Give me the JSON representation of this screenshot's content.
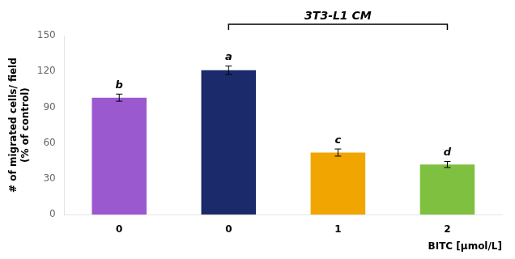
{
  "chart_data": {
    "type": "bar",
    "categories": [
      "0",
      "0",
      "1",
      "2"
    ],
    "values": [
      98,
      121,
      52,
      42
    ],
    "errors": [
      3,
      3.5,
      3,
      2.5
    ],
    "colors": [
      "#9B59D0",
      "#1B2A6B",
      "#F0A500",
      "#80C040"
    ],
    "letter_labels": [
      "b",
      "a",
      "c",
      "d"
    ],
    "bracket_label": "3T3-L1 CM",
    "ylabel": "# of migrated cells/ field\n(% of control)",
    "xlabel": "BITC [μmol/L]",
    "ylim": [
      0,
      150
    ],
    "yticks": [
      0,
      30,
      60,
      90,
      120,
      150
    ],
    "grid": false
  }
}
